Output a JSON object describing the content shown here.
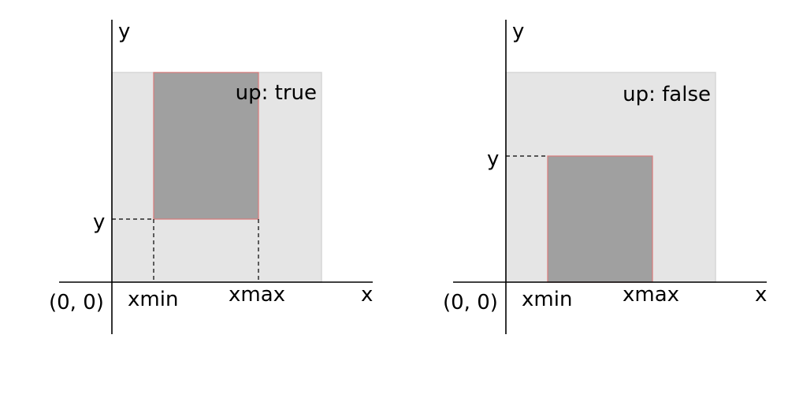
{
  "colors": {
    "plot_area": "#e5e5e5",
    "plot_area_border": "#d6d6d6",
    "rectangle_fill": "#a0a0a0",
    "rectangle_border": "#d97a7a",
    "axis": "#000000",
    "dashed": "#000000"
  },
  "panels": [
    {
      "mode_label": "up: true",
      "x_axis_label": "x",
      "y_axis_label": "y",
      "origin_label": "(0, 0)",
      "xmin_label": "xmin",
      "xmax_label": "xmax",
      "y_marker_label": "y"
    },
    {
      "mode_label": "up: false",
      "x_axis_label": "x",
      "y_axis_label": "y",
      "origin_label": "(0, 0)",
      "xmin_label": "xmin",
      "xmax_label": "xmax",
      "y_marker_label": "y"
    }
  ]
}
